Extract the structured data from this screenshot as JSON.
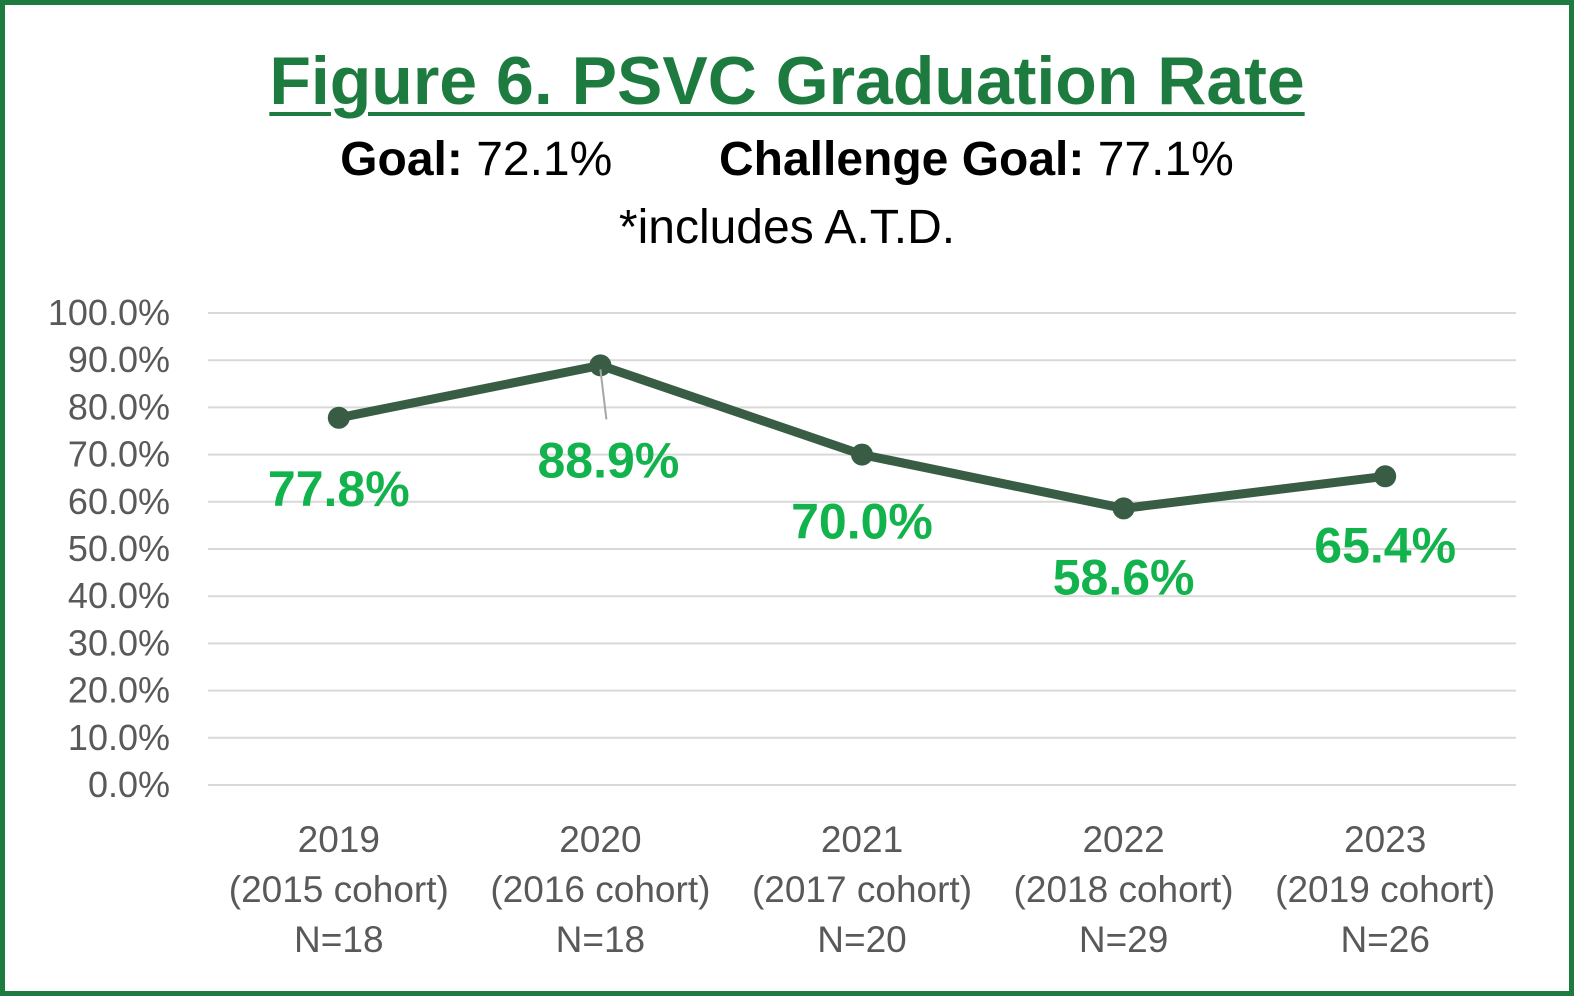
{
  "title": "Figure 6. PSVC Graduation Rate",
  "goals": {
    "goal_label": "Goal:",
    "goal_value": "72.1%",
    "challenge_label": "Challenge Goal:",
    "challenge_value": "77.1%"
  },
  "note": "*includes A.T.D.",
  "colors": {
    "frame": "#1e7b40",
    "title": "#1e7b40",
    "line": "#385d44",
    "data_label": "#12b24c",
    "grid": "#d9d9d9",
    "tick_text": "#595959"
  },
  "chart_data": {
    "type": "line",
    "title": "Figure 6. PSVC Graduation Rate",
    "categories": [
      [
        "2019",
        "(2015 cohort)",
        "N=18"
      ],
      [
        "2020",
        "(2016 cohort)",
        "N=18"
      ],
      [
        "2021",
        "(2017 cohort)",
        "N=20"
      ],
      [
        "2022",
        "(2018 cohort)",
        "N=29"
      ],
      [
        "2023",
        "(2019 cohort)",
        "N=26"
      ]
    ],
    "series": [
      {
        "values": [
          77.8,
          88.9,
          70.0,
          58.6,
          65.4
        ],
        "labels": [
          "77.8%",
          "88.9%",
          "70.0%",
          "58.6%",
          "65.4%"
        ]
      }
    ],
    "ylim": [
      0,
      100
    ],
    "yticks": [
      0,
      10,
      20,
      30,
      40,
      50,
      60,
      70,
      80,
      90,
      100
    ],
    "ytick_labels": [
      "0.0%",
      "10.0%",
      "20.0%",
      "30.0%",
      "40.0%",
      "50.0%",
      "60.0%",
      "70.0%",
      "80.0%",
      "90.0%",
      "100.0%"
    ],
    "grid": true,
    "legend": "none"
  }
}
